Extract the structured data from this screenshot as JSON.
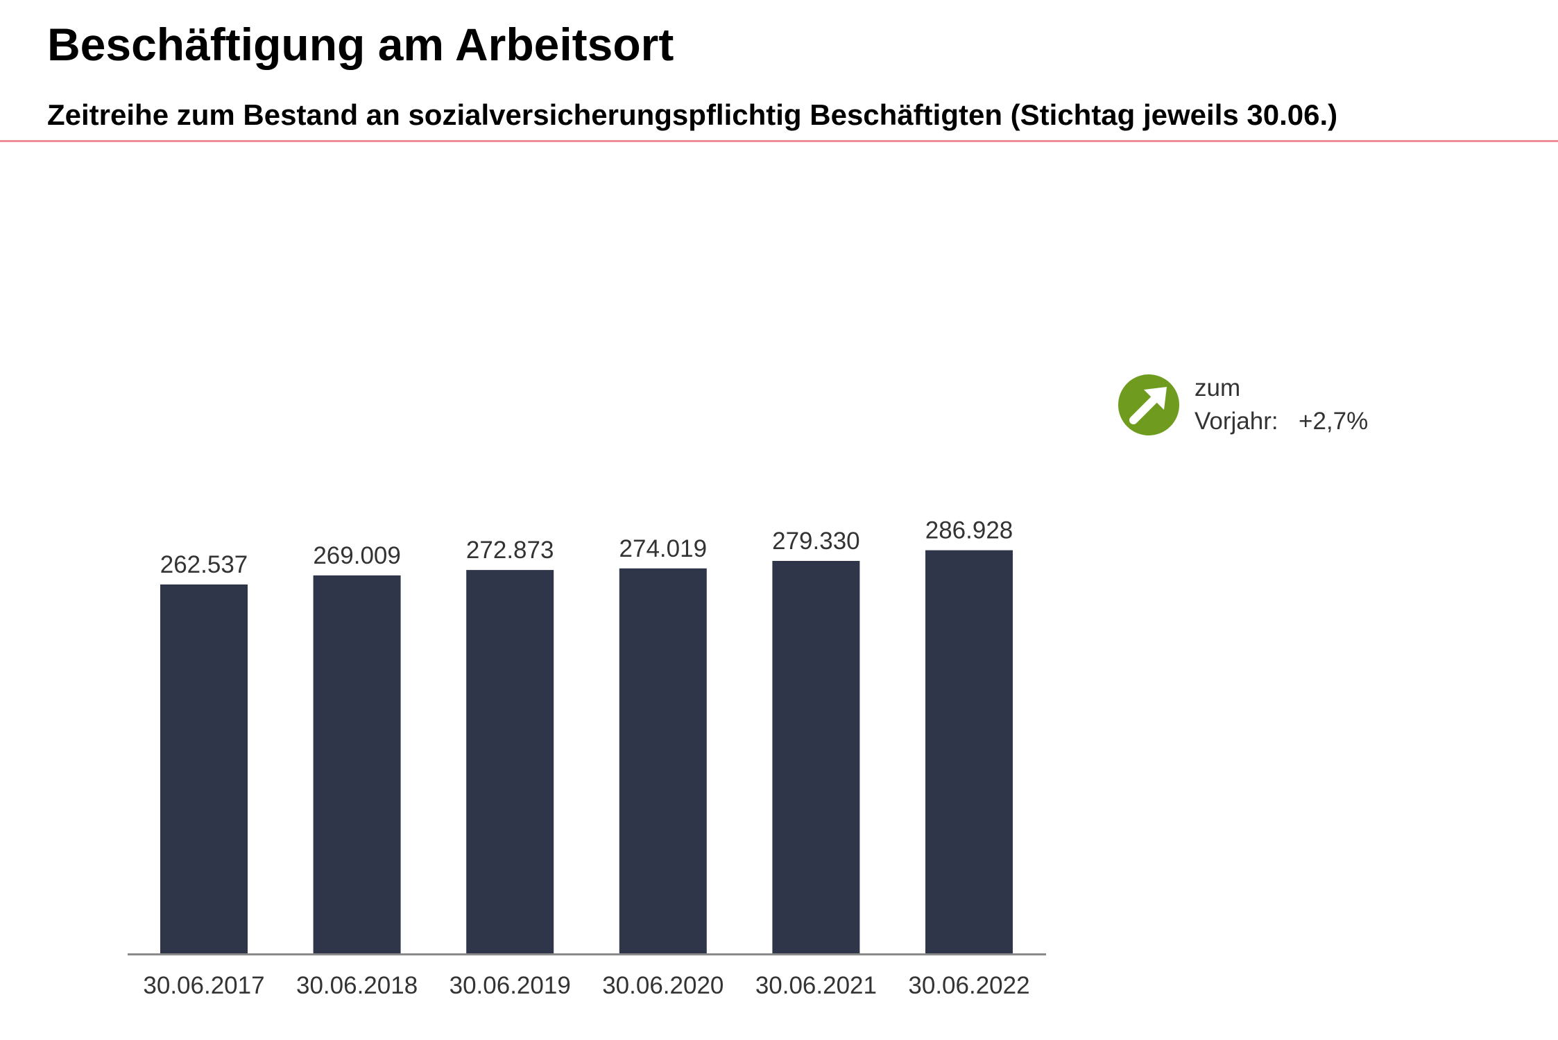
{
  "header": {
    "title": "Beschäftigung am Arbeitsort",
    "subtitle": "Zeitreihe zum Bestand an sozialversicherungspflichtig Beschäftigten (Stichtag jeweils 30.06.)",
    "rule_color": "#f08c9a"
  },
  "chart_data": {
    "type": "bar",
    "categories": [
      "30.06.2017",
      "30.06.2018",
      "30.06.2019",
      "30.06.2020",
      "30.06.2021",
      "30.06.2022"
    ],
    "values": [
      262537,
      269009,
      272873,
      274019,
      279330,
      286928
    ],
    "value_labels": [
      "262.537",
      "269.009",
      "272.873",
      "274.019",
      "279.330",
      "286.928"
    ],
    "title": "",
    "xlabel": "",
    "ylabel": "",
    "ylim": [
      0,
      300000
    ],
    "grid": false,
    "legend": "none",
    "bar_color": "#2f3649",
    "axis_color": "#8a8a8a",
    "label_color": "#333333"
  },
  "change_indicator": {
    "icon": "arrow-up-right-circle-icon",
    "icon_color": "#6f9b1f",
    "label_line1": "zum",
    "label_line2": "Vorjahr:",
    "value": "+2,7%"
  }
}
